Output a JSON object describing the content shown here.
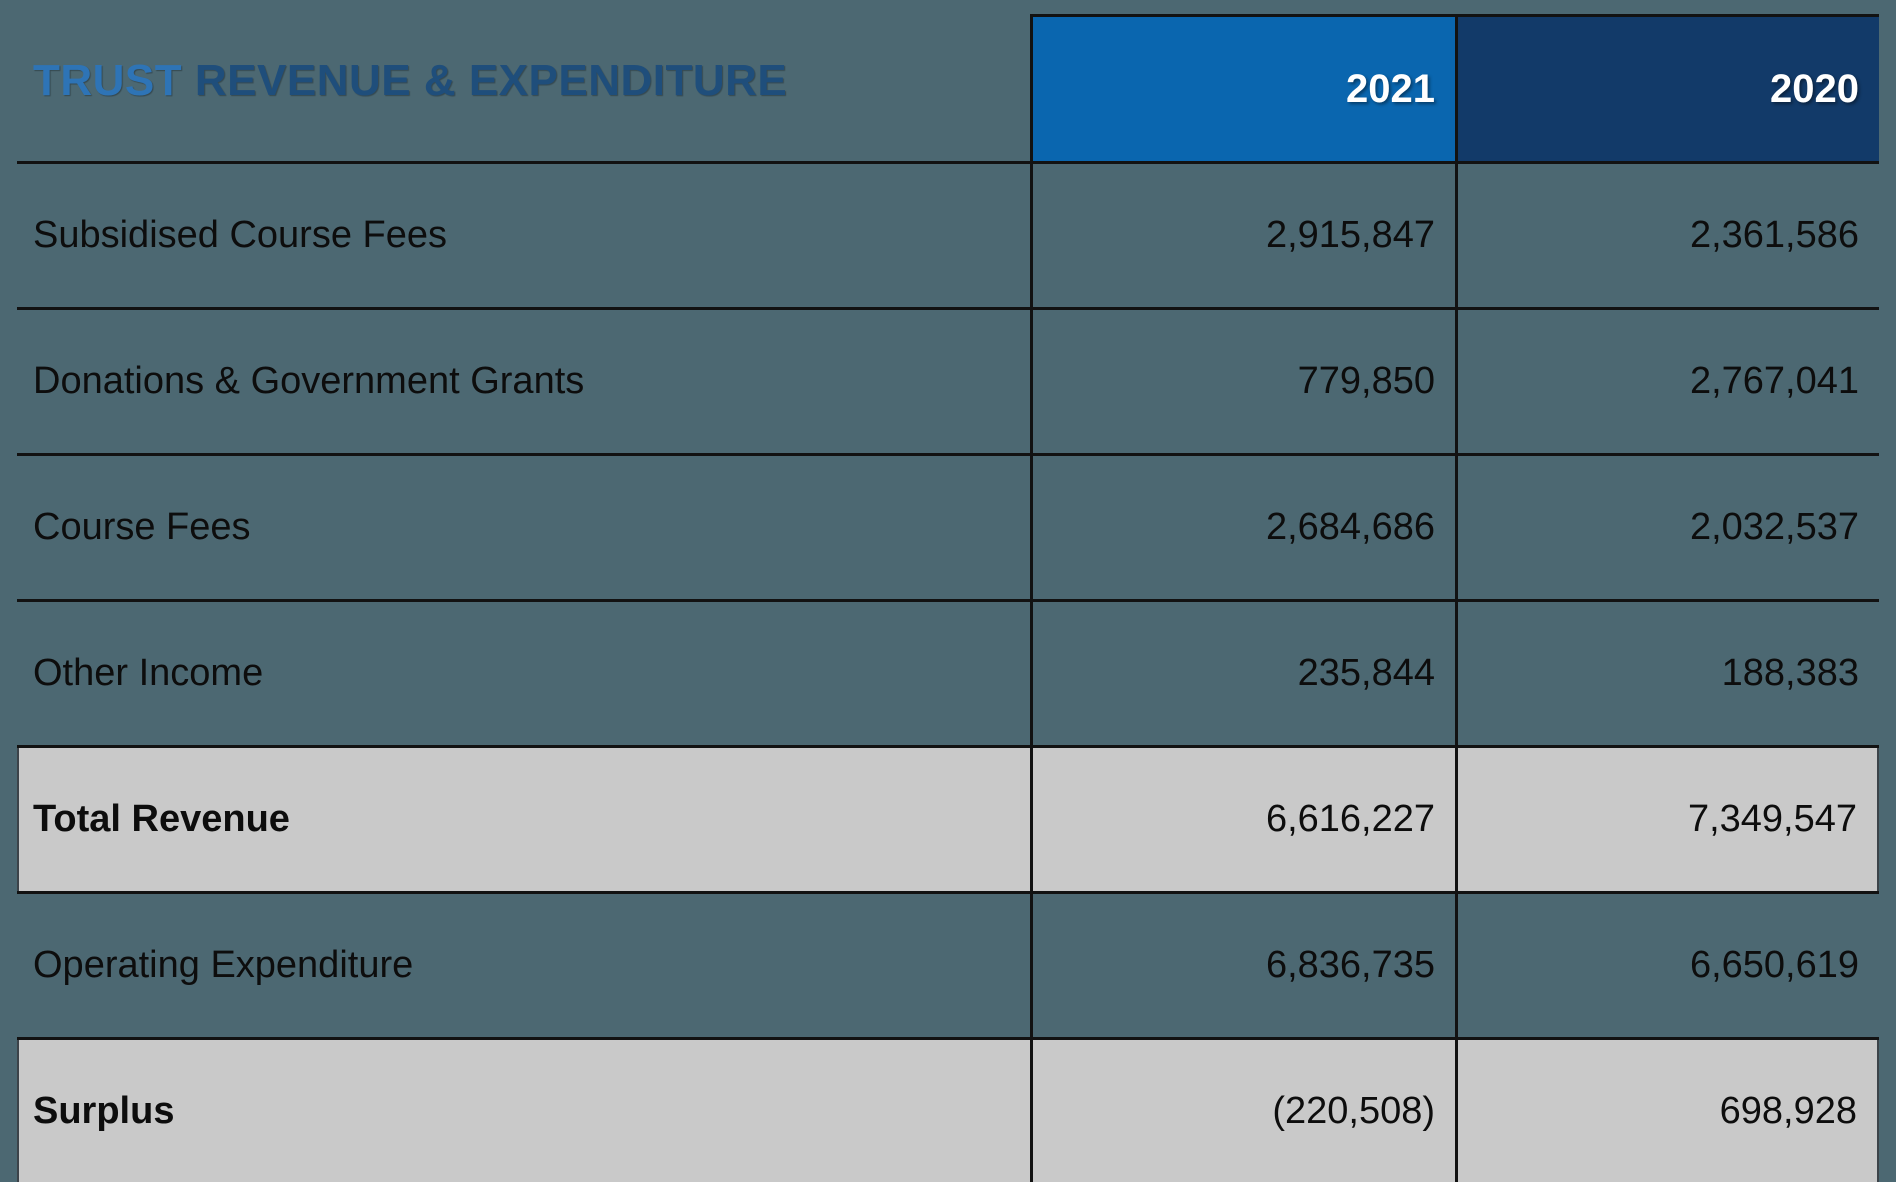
{
  "title": {
    "part1": "TRUST",
    "part2": " REVENUE & EXPENDITURE"
  },
  "columns": [
    {
      "label": "2021"
    },
    {
      "label": "2020"
    }
  ],
  "rows": [
    {
      "label": "Subsidised Course Fees",
      "values": [
        "2,915,847",
        "2,361,586"
      ],
      "highlight": false
    },
    {
      "label": "Donations & Government Grants",
      "values": [
        "779,850",
        "2,767,041"
      ],
      "highlight": false
    },
    {
      "label": "Course Fees",
      "values": [
        "2,684,686",
        "2,032,537"
      ],
      "highlight": false
    },
    {
      "label": "Other Income",
      "values": [
        "235,844",
        "188,383"
      ],
      "highlight": false
    },
    {
      "label": "Total Revenue",
      "values": [
        "6,616,227",
        "7,349,547"
      ],
      "highlight": true
    },
    {
      "label": "Operating Expenditure",
      "values": [
        "6,836,735",
        "6,650,619"
      ],
      "highlight": false
    },
    {
      "label": "Surplus",
      "values": [
        "(220,508)",
        "698,928"
      ],
      "highlight": true
    }
  ],
  "colors": {
    "background_teal": "#4c6872",
    "header_2021_blue": "#0a66af",
    "header_2020_navy": "#123a69",
    "highlight_gray": "#c9c9c9",
    "grid_line": "#121212",
    "title_light_blue": "#2e74b6",
    "title_dark_blue": "#1f4e7b",
    "header_text": "#ffffff",
    "body_text": "#0d0d0d"
  },
  "chart_data": {
    "type": "table",
    "title": "TRUST REVENUE & EXPENDITURE",
    "columns": [
      "",
      "2021",
      "2020"
    ],
    "rows": [
      [
        "Subsidised Course Fees",
        2915847,
        2361586
      ],
      [
        "Donations & Government Grants",
        779850,
        2767041
      ],
      [
        "Course Fees",
        2684686,
        2032537
      ],
      [
        "Other Income",
        235844,
        188383
      ],
      [
        "Total Revenue",
        6616227,
        7349547
      ],
      [
        "Operating Expenditure",
        6836735,
        6650619
      ],
      [
        "Surplus",
        -220508,
        698928
      ]
    ]
  }
}
